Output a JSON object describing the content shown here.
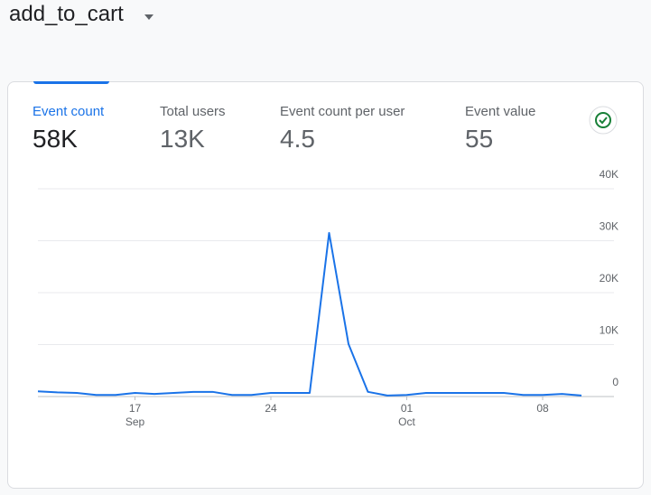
{
  "header": {
    "title": "add_to_cart"
  },
  "metrics": [
    {
      "label": "Event count",
      "value": "58K"
    },
    {
      "label": "Total users",
      "value": "13K"
    },
    {
      "label": "Event count per user",
      "value": "4.5"
    },
    {
      "label": "Event value",
      "value": "55"
    }
  ],
  "chart_data": {
    "type": "line",
    "categories": [
      "Sep 12",
      "Sep 13",
      "Sep 14",
      "Sep 15",
      "Sep 16",
      "Sep 17",
      "Sep 18",
      "Sep 19",
      "Sep 20",
      "Sep 21",
      "Sep 22",
      "Sep 23",
      "Sep 24",
      "Sep 25",
      "Sep 26",
      "Sep 27",
      "Sep 28",
      "Sep 29",
      "Sep 30",
      "Oct 01",
      "Oct 02",
      "Oct 03",
      "Oct 04",
      "Oct 05",
      "Oct 06",
      "Oct 07",
      "Oct 08",
      "Oct 09",
      "Oct 10"
    ],
    "series": [
      {
        "name": "Event count",
        "color": "#1a73e8",
        "values": [
          1000,
          800,
          700,
          300,
          300,
          700,
          500,
          700,
          900,
          900,
          300,
          300,
          700,
          700,
          700,
          31500,
          10100,
          900,
          200,
          300,
          700,
          700,
          700,
          700,
          700,
          300,
          300,
          500,
          200
        ]
      }
    ],
    "ylim": [
      0,
      40000
    ],
    "yticks": [
      0,
      {
        "value": 10000,
        "label": "10K"
      },
      {
        "value": 20000,
        "label": "20K"
      },
      {
        "value": 30000,
        "label": "30K"
      },
      {
        "value": 40000,
        "label": "40K"
      }
    ],
    "xticks": [
      {
        "value": "Sep 17",
        "label": "17",
        "month": "Sep"
      },
      {
        "value": "Sep 24",
        "label": "24"
      },
      {
        "value": "Oct 01",
        "label": "01",
        "month": "Oct"
      },
      {
        "value": "Oct 08",
        "label": "08"
      }
    ],
    "grid": true
  }
}
